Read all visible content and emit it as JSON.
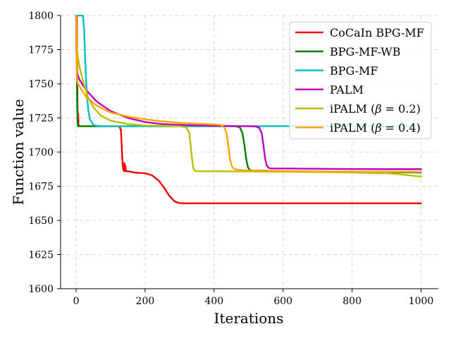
{
  "chart_data": {
    "type": "line",
    "xlabel": "Iterations",
    "ylabel": "Function value",
    "xlim": [
      -45,
      1050
    ],
    "ylim": [
      1600,
      1800
    ],
    "xticks": [
      0,
      200,
      400,
      600,
      800,
      1000
    ],
    "yticks": [
      1600,
      1625,
      1650,
      1675,
      1700,
      1725,
      1750,
      1775,
      1800
    ],
    "grid": true,
    "legend_position": "top-right",
    "series": [
      {
        "name": "CoCaIn BPG-MF",
        "color": "#ff0000",
        "x": [
          0,
          2,
          3,
          4,
          5,
          6,
          7,
          8,
          10,
          20,
          60,
          100,
          125,
          130,
          133,
          135,
          137,
          139,
          140,
          141,
          142,
          143,
          144,
          146,
          150,
          170,
          200,
          220,
          240,
          255,
          270,
          285,
          295,
          305,
          320,
          350,
          400,
          500,
          600,
          700,
          800,
          900,
          1000
        ],
        "y": [
          1800,
          1800,
          1760,
          1735,
          1722,
          1728,
          1720,
          1719,
          1719,
          1719,
          1719,
          1719,
          1719,
          1716,
          1700,
          1690,
          1687,
          1686,
          1692,
          1688,
          1686,
          1690,
          1686,
          1686,
          1686,
          1685,
          1684.5,
          1683,
          1679,
          1674,
          1668,
          1664,
          1663,
          1662.5,
          1662.5,
          1662.5,
          1662.5,
          1662.5,
          1662.5,
          1662.5,
          1662.5,
          1662.5,
          1662.5
        ]
      },
      {
        "name": "BPG-MF-WB",
        "color": "#008000",
        "x": [
          0,
          2,
          3,
          4,
          5,
          6,
          10,
          50,
          100,
          200,
          300,
          400,
          440,
          465,
          475,
          482,
          488,
          493,
          498,
          503,
          510,
          530,
          600,
          800,
          1000
        ],
        "y": [
          1800,
          1760,
          1738,
          1724,
          1719,
          1719,
          1719,
          1719,
          1719,
          1719,
          1719,
          1719,
          1719,
          1718.8,
          1718,
          1714,
          1705,
          1695,
          1689,
          1687,
          1686.5,
          1686.5,
          1686,
          1685.5,
          1685
        ]
      },
      {
        "name": "BPG-MF",
        "color": "#00bfbf",
        "x": [
          0,
          20,
          23,
          26,
          29,
          32,
          35,
          40,
          50,
          60,
          80,
          100,
          200,
          400,
          600,
          800,
          1000
        ],
        "y": [
          1800,
          1800,
          1790,
          1770,
          1752,
          1740,
          1731,
          1724,
          1720,
          1719.2,
          1719,
          1719,
          1719,
          1719,
          1719,
          1719,
          1719
        ]
      },
      {
        "name": "PALM",
        "color": "#bf00bf",
        "x": [
          0,
          1,
          2,
          5,
          10,
          30,
          60,
          100,
          150,
          200,
          250,
          300,
          350,
          400,
          450,
          500,
          520,
          530,
          538,
          543,
          548,
          553,
          558,
          565,
          580,
          600,
          700,
          800,
          900,
          1000
        ],
        "y": [
          1800,
          1775,
          1760,
          1756,
          1753,
          1745,
          1737,
          1730,
          1725,
          1722,
          1720.5,
          1720,
          1719.5,
          1719.3,
          1719.1,
          1719,
          1718.8,
          1718,
          1714,
          1705,
          1695,
          1690,
          1688.5,
          1688,
          1688,
          1688,
          1687.8,
          1687.6,
          1687.5,
          1687.5
        ]
      },
      {
        "name": "iPALM ($\\beta = 0.2$)",
        "color": "#bfbf00",
        "x": [
          0,
          2,
          5,
          10,
          20,
          35,
          50,
          70,
          100,
          150,
          200,
          250,
          300,
          320,
          328,
          332,
          336,
          340,
          345,
          350,
          360,
          400,
          500,
          600,
          700,
          800,
          900,
          950,
          1000
        ],
        "y": [
          1800,
          1778,
          1770,
          1762,
          1752,
          1740,
          1733,
          1727,
          1723,
          1720.5,
          1719.5,
          1719.3,
          1719,
          1718,
          1714,
          1705,
          1695,
          1688,
          1686.3,
          1686,
          1686,
          1686,
          1685.8,
          1685.6,
          1685.4,
          1685,
          1684.5,
          1683.5,
          1682
        ]
      },
      {
        "name": "iPALM ($\\beta = 0.4$)",
        "color": "#ffa500",
        "x": [
          0,
          1,
          2,
          3,
          5,
          10,
          30,
          60,
          100,
          150,
          200,
          250,
          300,
          350,
          400,
          420,
          430,
          436,
          441,
          446,
          451,
          456,
          462,
          470,
          500,
          600,
          800,
          1000
        ],
        "y": [
          1800,
          1790,
          1760,
          1752,
          1750,
          1748,
          1740,
          1734,
          1729,
          1726,
          1724,
          1722.5,
          1721.5,
          1720.8,
          1720.3,
          1719.8,
          1718,
          1714,
          1705,
          1695,
          1690,
          1688,
          1687.5,
          1687,
          1686.5,
          1686,
          1685.7,
          1685.5
        ]
      }
    ]
  }
}
